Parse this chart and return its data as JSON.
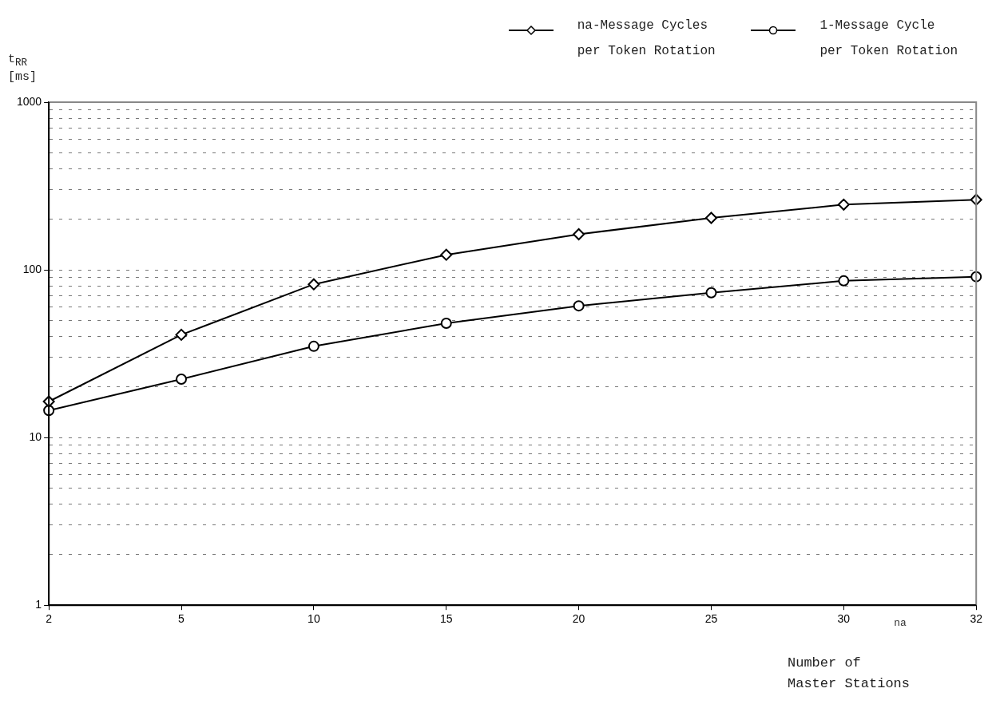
{
  "chart_data": {
    "type": "line",
    "categories": [
      "2",
      "5",
      "10",
      "15",
      "20",
      "25",
      "30",
      "32"
    ],
    "series": [
      {
        "name": "na-Message Cycles per Token Rotation",
        "color": "#000000",
        "marker": "diamond",
        "values": [
          16.4,
          41,
          82,
          123,
          163,
          204,
          245,
          262
        ]
      },
      {
        "name": "1-Message Cycle per Token Rotation",
        "color": "#000000",
        "marker": "circle",
        "values": [
          14.5,
          22.3,
          35,
          48,
          61,
          73,
          86,
          91
        ]
      }
    ],
    "ylabel": "t$_{RR}$ [ms]",
    "xlabel": "Number of Master Stations",
    "annotations": [
      "na"
    ],
    "log": "y",
    "ylim": [
      1,
      1000
    ],
    "yticks": [
      1,
      {
        "value": 2,
        "label": null
      },
      {
        "value": 3,
        "label": null
      },
      {
        "value": 4,
        "label": null
      },
      {
        "value": 5,
        "label": null
      },
      {
        "value": 6,
        "label": null
      },
      {
        "value": 7,
        "label": null
      },
      {
        "value": 8,
        "label": null
      },
      {
        "value": 9,
        "label": null
      },
      10,
      {
        "value": 20,
        "label": null
      },
      {
        "value": 30,
        "label": null
      },
      {
        "value": 40,
        "label": null
      },
      {
        "value": 50,
        "label": null
      },
      {
        "value": 60,
        "label": null
      },
      {
        "value": 70,
        "label": null
      },
      {
        "value": 80,
        "label": null
      },
      {
        "value": 90,
        "label": null
      },
      100,
      {
        "value": 200,
        "label": null
      },
      {
        "value": 300,
        "label": null
      },
      {
        "value": 400,
        "label": null
      },
      {
        "value": 500,
        "label": null
      },
      {
        "value": 600,
        "label": null
      },
      {
        "value": 700,
        "label": null
      },
      {
        "value": 800,
        "label": null
      },
      {
        "value": 900,
        "label": null
      },
      1000
    ],
    "grid": "y",
    "legend": "top right",
    "line_style": "solid"
  }
}
